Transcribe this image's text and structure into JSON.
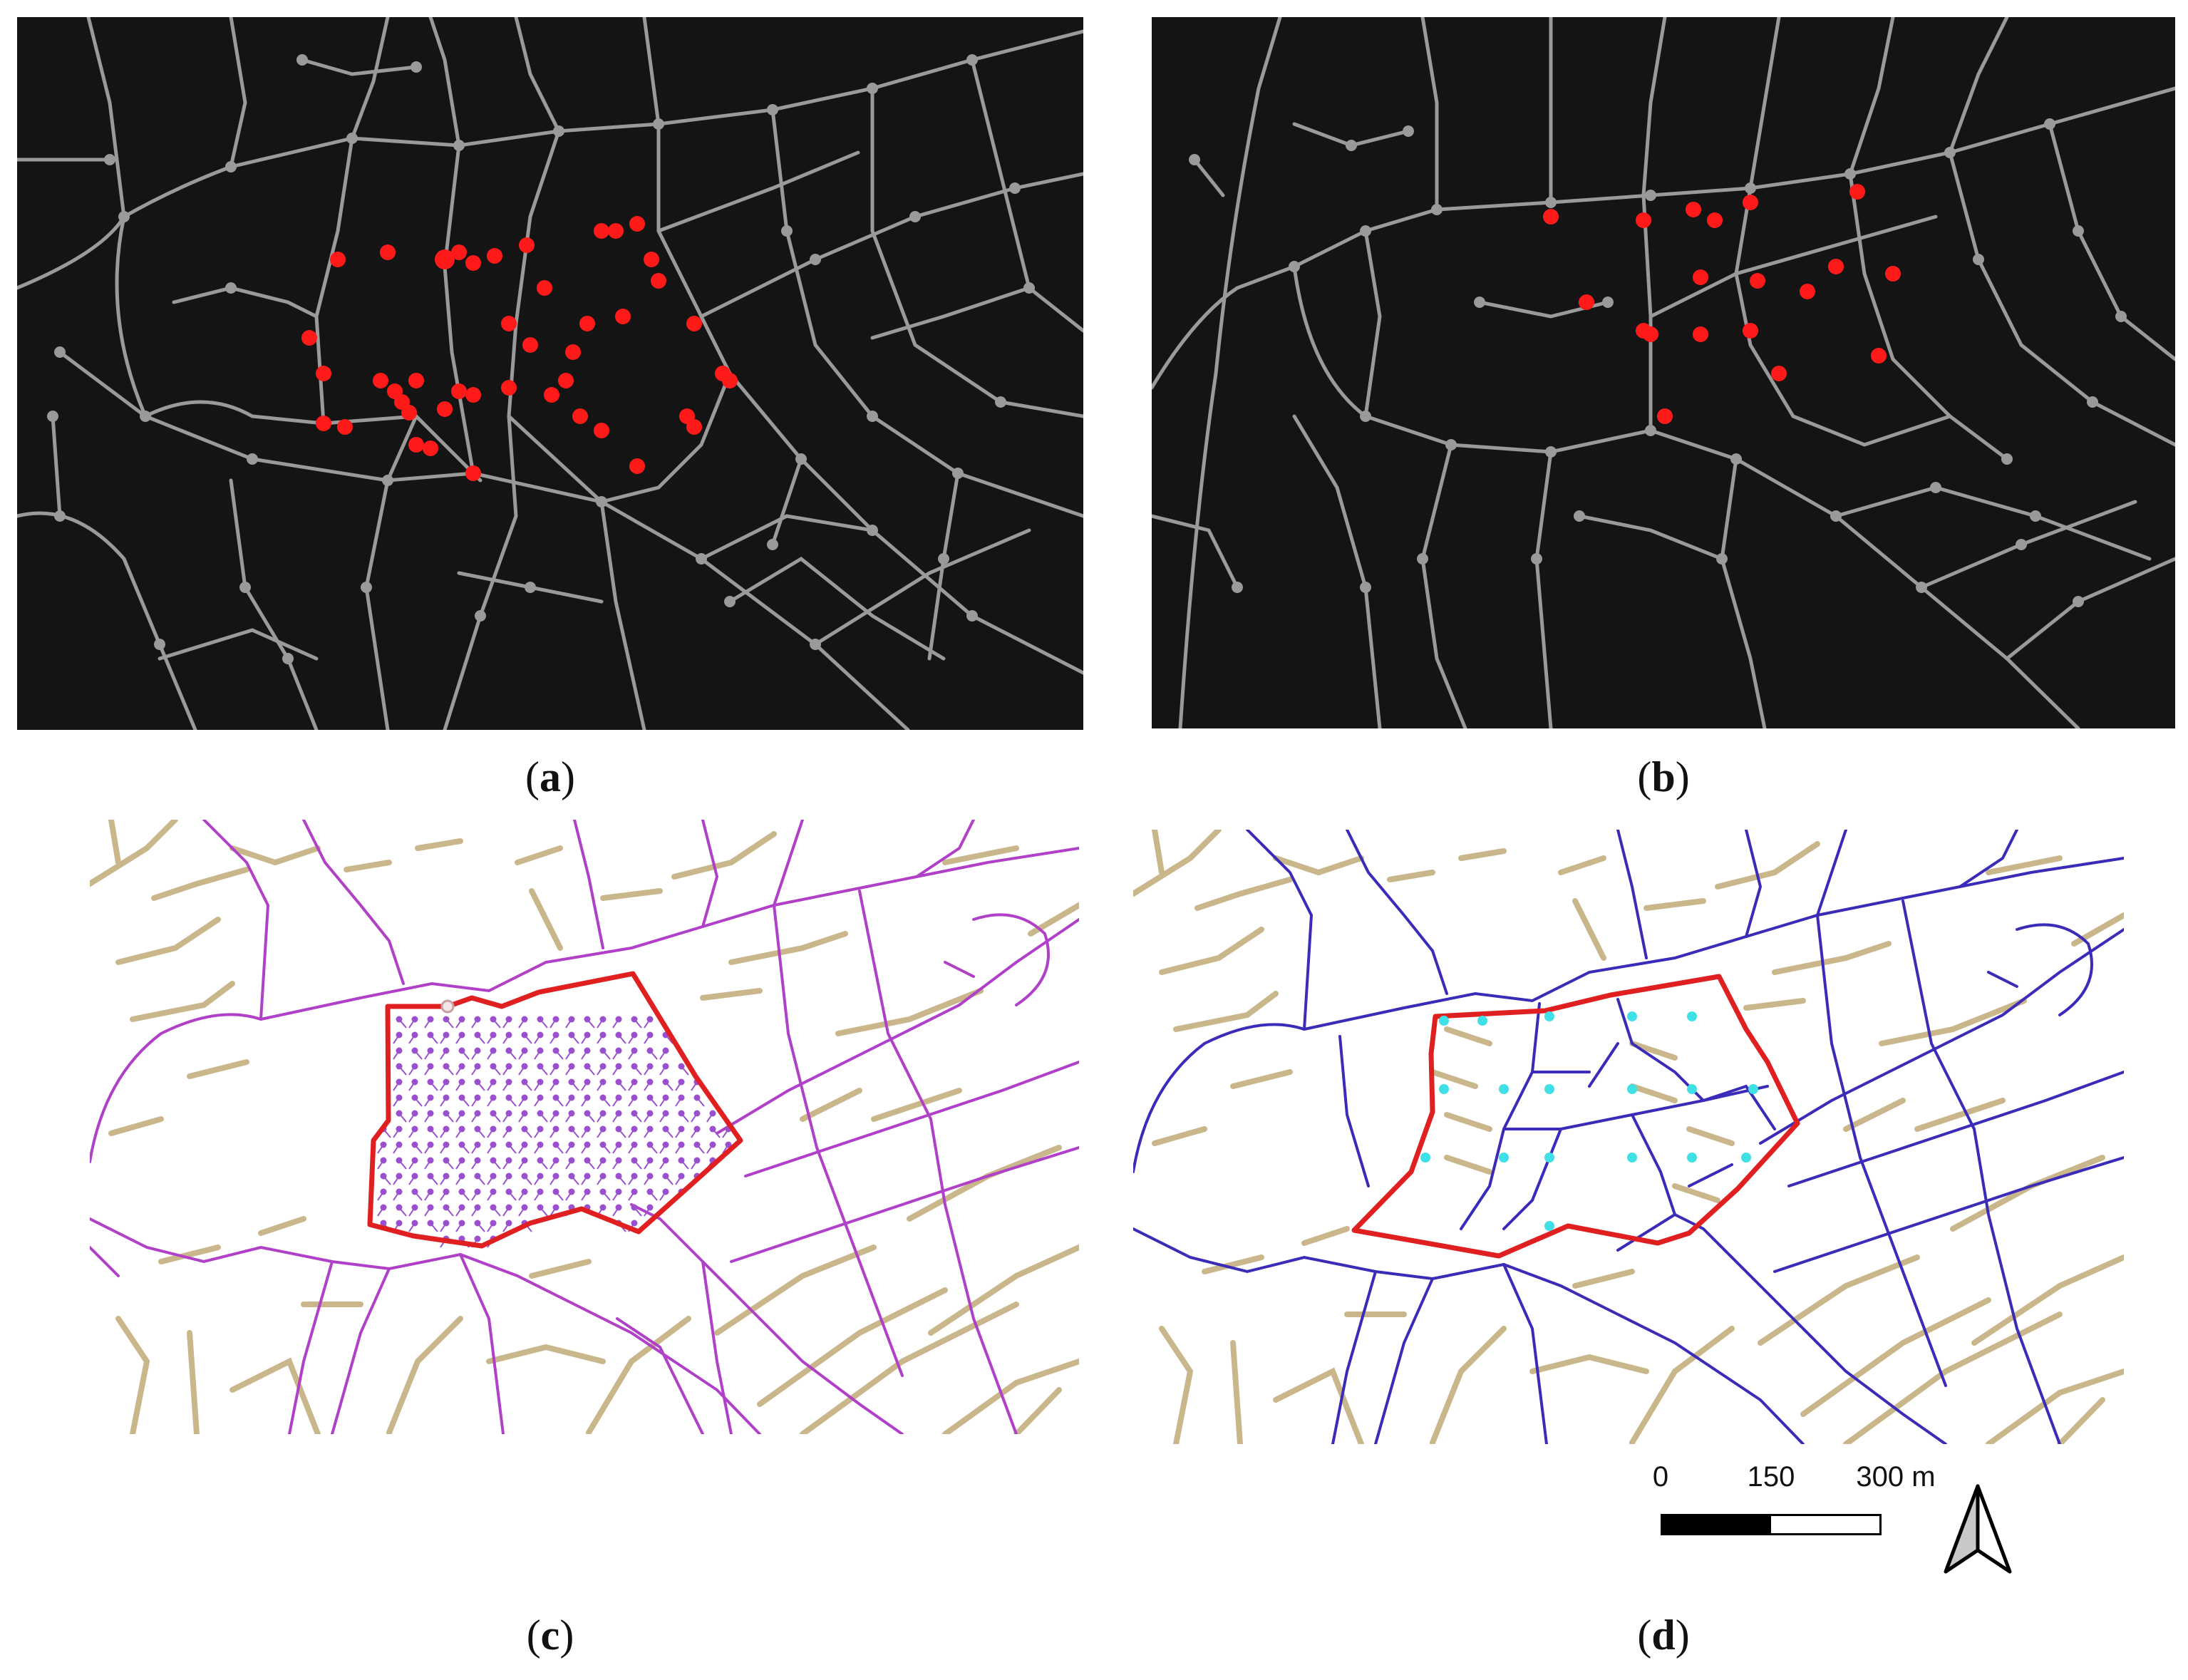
{
  "figure": {
    "panels": [
      {
        "id": "a",
        "label": "a",
        "style": "dark road network with node dots; red dots mark nodes in the study area"
      },
      {
        "id": "b",
        "label": "b",
        "style": "dark road network with node dots; red dots mark nodes in the study area"
      },
      {
        "id": "c",
        "label": "c",
        "style": "tan road network with purple major roads; red boundary with dense purple point grid"
      },
      {
        "id": "d",
        "label": "d",
        "style": "tan road network with blue major roads; red boundary with cyan sample points"
      }
    ],
    "colors": {
      "dark_bg": "#141414",
      "dark_road": "#9a9a9a",
      "highlight_node": "#ff1a1a",
      "tan_road": "#c9b68a",
      "purple_road": "#b040c8",
      "purple_point": "#9a4fcf",
      "blue_road": "#3a2bb8",
      "boundary": "#e02020",
      "cyan_point": "#3fe0e6"
    }
  },
  "scale": {
    "ticks": [
      "0",
      "150",
      "300 m"
    ]
  },
  "north_arrow": {
    "icon": "north-arrow-icon"
  }
}
